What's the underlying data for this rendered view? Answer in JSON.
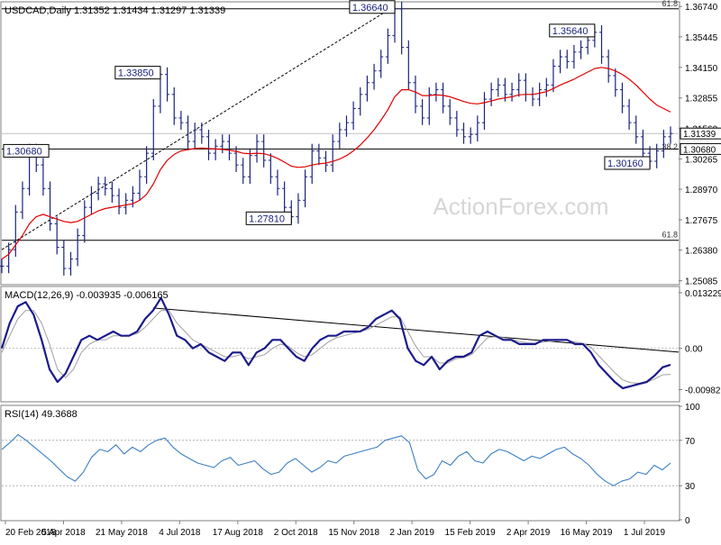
{
  "chart_data": [
    {
      "type": "line",
      "panel": "price",
      "title": "USDCAD,Daily  1.31352 1.31434 1.31297 1.31339",
      "watermark": "ActionForex.com",
      "ylim": [
        1.2495,
        1.369
      ],
      "y_ticks": [
        1.3674,
        1.3545,
        1.3415,
        1.3285,
        1.3156,
        1.3026,
        1.2897,
        1.2767,
        1.2638,
        1.2508
      ],
      "y_tick_labels": [
        "1.36740",
        "1.35445",
        "1.34150",
        "1.32855",
        "1.31560",
        "1.30265",
        "1.28970",
        "1.27675",
        "1.26380",
        "1.25085"
      ],
      "current_price": 1.31339,
      "current_price_label": "1.31339",
      "level_line_value": 1.3068,
      "level_line_label": "1.30680",
      "fib_levels": [
        {
          "label": "61.8",
          "value": 1.3664
        },
        {
          "label": "61.8",
          "value": 1.268
        },
        {
          "label": "38.2",
          "value": 1.3058
        }
      ],
      "annotations": [
        {
          "label": "1.33850",
          "value": 1.3385
        },
        {
          "label": "1.27810",
          "value": 1.2781
        },
        {
          "label": "1.36640",
          "value": 1.3664
        },
        {
          "label": "1.30680",
          "value": 1.3068
        },
        {
          "label": "1.35640",
          "value": 1.3564
        },
        {
          "label": "1.30160",
          "value": 1.3016
        }
      ],
      "x_tick_labels": [
        "20 Feb 2018",
        "5 Apr 2018",
        "21 May 2018",
        "4 Jul 2018",
        "17 Aug 2018",
        "2 Oct 2018",
        "15 Nov 2018",
        "2 Jan 2019",
        "15 Feb 2019",
        "2 Apr 2019",
        "16 May 2019",
        "1 Jul 2019"
      ],
      "series": [
        {
          "values": [
            1.257,
            1.264,
            1.28,
            1.29,
            1.306,
            1.3,
            1.29,
            1.275,
            1.265,
            1.256,
            1.26,
            1.27,
            1.282,
            1.288,
            1.292,
            1.29,
            1.287,
            1.282,
            1.285,
            1.288,
            1.295,
            1.305,
            1.325,
            1.3385,
            1.33,
            1.32,
            1.318,
            1.31,
            1.315,
            1.312,
            1.305,
            1.308,
            1.31,
            1.305,
            1.3,
            1.295,
            1.304,
            1.31,
            1.302,
            1.295,
            1.29,
            1.282,
            1.278,
            1.285,
            1.295,
            1.306,
            1.303,
            1.3,
            1.31,
            1.315,
            1.318,
            1.324,
            1.33,
            1.335,
            1.34,
            1.346,
            1.355,
            1.3664,
            1.35,
            1.335,
            1.325,
            1.32,
            1.33,
            1.332,
            1.325,
            1.32,
            1.315,
            1.312,
            1.313,
            1.318,
            1.328,
            1.332,
            1.334,
            1.33,
            1.332,
            1.336,
            1.33,
            1.328,
            1.332,
            1.334,
            1.342,
            1.346,
            1.344,
            1.348,
            1.35,
            1.353,
            1.3564,
            1.346,
            1.338,
            1.332,
            1.325,
            1.318,
            1.312,
            1.305,
            1.3016,
            1.306,
            1.312,
            1.3134
          ]
        },
        {
          "values": [
            1.26,
            1.262,
            1.266,
            1.27,
            1.275,
            1.278,
            1.279,
            1.278,
            1.277,
            1.276,
            1.2755,
            1.276,
            1.2775,
            1.279,
            1.2805,
            1.2815,
            1.282,
            1.2825,
            1.283,
            1.2835,
            1.285,
            1.2875,
            1.292,
            1.298,
            1.302,
            1.3045,
            1.306,
            1.3065,
            1.307,
            1.3072,
            1.307,
            1.3068,
            1.3066,
            1.3063,
            1.3058,
            1.305,
            1.3048,
            1.305,
            1.3048,
            1.304,
            1.3028,
            1.3012,
            1.2995,
            1.299,
            1.2992,
            1.3,
            1.3005,
            1.3008,
            1.3015,
            1.3025,
            1.304,
            1.306,
            1.3085,
            1.3115,
            1.315,
            1.319,
            1.3235,
            1.329,
            1.332,
            1.332,
            1.331,
            1.3295,
            1.3295,
            1.3298,
            1.3296,
            1.329,
            1.328,
            1.327,
            1.3262,
            1.326,
            1.3265,
            1.3272,
            1.328,
            1.3285,
            1.329,
            1.3298,
            1.33,
            1.33,
            1.3305,
            1.3312,
            1.3325,
            1.334,
            1.3352,
            1.3365,
            1.338,
            1.3395,
            1.341,
            1.3415,
            1.341,
            1.34,
            1.3385,
            1.3365,
            1.334,
            1.331,
            1.328,
            1.3255,
            1.324,
            1.3225
          ]
        }
      ]
    },
    {
      "type": "line",
      "panel": "macd",
      "title": "MACD(12,26,9) -0.003935 -0.006165",
      "ylim": [
        -0.0125,
        0.0145
      ],
      "y_ticks": [
        0.013229,
        0.0,
        -0.00982
      ],
      "y_tick_labels": [
        "0.013229",
        "0.00",
        "-0.00982"
      ],
      "trendline_from_value": 0.0096,
      "trendline_to_value": -0.0009,
      "series": [
        {
          "values": [
            0.0,
            0.006,
            0.01,
            0.011,
            0.008,
            0.002,
            -0.005,
            -0.008,
            -0.006,
            -0.002,
            0.002,
            0.003,
            0.002,
            0.003,
            0.004,
            0.003,
            0.003,
            0.004,
            0.007,
            0.009,
            0.012,
            0.008,
            0.003,
            0.002,
            0.0,
            0.001,
            -0.001,
            -0.002,
            -0.003,
            -0.001,
            -0.001,
            -0.004,
            -0.001,
            0.0,
            0.002,
            0.002,
            0.0,
            -0.002,
            -0.003,
            0.0,
            0.002,
            0.003,
            0.003,
            0.004,
            0.004,
            0.004,
            0.005,
            0.007,
            0.008,
            0.009,
            0.007,
            0.0,
            -0.003,
            -0.004,
            -0.002,
            -0.005,
            -0.003,
            -0.002,
            -0.002,
            -0.001,
            0.003,
            0.004,
            0.003,
            0.002,
            0.002,
            0.001,
            0.001,
            0.001,
            0.002,
            0.002,
            0.002,
            0.002,
            0.001,
            0.001,
            -0.001,
            -0.004,
            -0.006,
            -0.008,
            -0.0095,
            -0.009,
            -0.0085,
            -0.008,
            -0.0065,
            -0.0045,
            -0.0039
          ]
        },
        {
          "values": [
            -0.001,
            0.003,
            0.007,
            0.009,
            0.009,
            0.006,
            0.001,
            -0.005,
            -0.007,
            -0.005,
            -0.001,
            0.001,
            0.002,
            0.002,
            0.003,
            0.003,
            0.003,
            0.0035,
            0.005,
            0.007,
            0.009,
            0.009,
            0.006,
            0.004,
            0.002,
            0.001,
            0.0,
            -0.001,
            -0.002,
            -0.002,
            -0.0015,
            -0.0025,
            -0.002,
            -0.0015,
            0.0,
            0.001,
            0.0005,
            -0.001,
            -0.002,
            -0.0015,
            0.0,
            0.0015,
            0.0025,
            0.003,
            0.0035,
            0.004,
            0.0045,
            0.0055,
            0.0065,
            0.0075,
            0.0075,
            0.004,
            0.0005,
            -0.002,
            -0.002,
            -0.0035,
            -0.0035,
            -0.0025,
            -0.0022,
            -0.0015,
            0.0005,
            0.0025,
            0.0028,
            0.0025,
            0.0022,
            0.0016,
            0.0013,
            0.0012,
            0.0015,
            0.0017,
            0.0018,
            0.0019,
            0.0015,
            0.0012,
            0.0002,
            -0.0018,
            -0.0038,
            -0.0058,
            -0.0075,
            -0.0082,
            -0.0083,
            -0.0081,
            -0.0073,
            -0.0063,
            -0.0062
          ]
        }
      ]
    },
    {
      "type": "line",
      "panel": "rsi",
      "title": "RSI(14) 49.3688",
      "ylim": [
        0,
        100
      ],
      "y_ticks": [
        100,
        70,
        30,
        0
      ],
      "y_tick_labels": [
        "100",
        "70",
        "30",
        "0"
      ],
      "series": [
        {
          "values": [
            62,
            68,
            75,
            70,
            64,
            58,
            52,
            45,
            38,
            34,
            42,
            55,
            62,
            60,
            66,
            58,
            64,
            60,
            66,
            70,
            72,
            64,
            58,
            54,
            50,
            48,
            46,
            52,
            55,
            48,
            50,
            52,
            45,
            40,
            42,
            50,
            54,
            48,
            42,
            46,
            52,
            50,
            56,
            58,
            60,
            62,
            64,
            70,
            72,
            74,
            68,
            44,
            36,
            40,
            52,
            48,
            56,
            60,
            52,
            50,
            58,
            62,
            60,
            56,
            52,
            56,
            54,
            58,
            62,
            64,
            58,
            54,
            48,
            40,
            34,
            30,
            34,
            36,
            42,
            40,
            48,
            44,
            50
          ]
        }
      ]
    }
  ]
}
